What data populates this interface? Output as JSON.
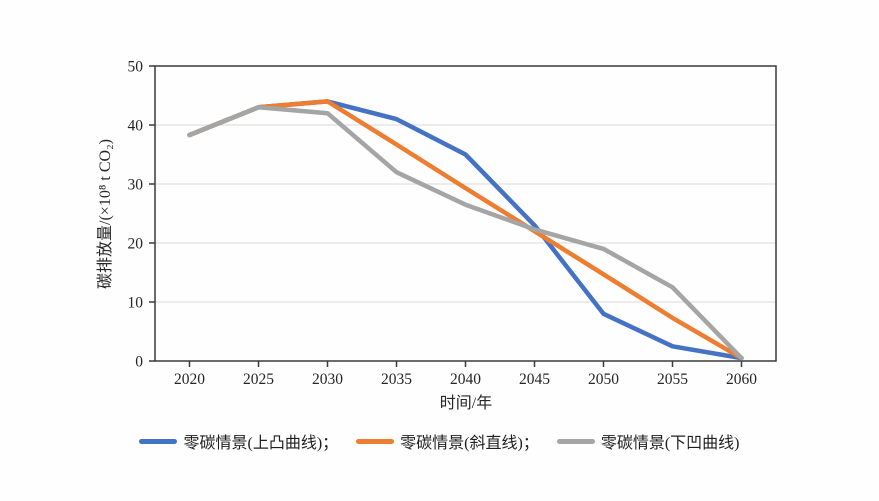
{
  "chart_data": {
    "type": "line",
    "title": "",
    "xlabel": "时间/年",
    "ylabel": "碳排放量/(×10⁸ t CO₂)",
    "x": [
      2020,
      2025,
      2030,
      2035,
      2040,
      2045,
      2050,
      2055,
      2060
    ],
    "xlim": [
      2017.5,
      2062.5
    ],
    "ylim": [
      0,
      50
    ],
    "yticks": [
      0,
      10,
      20,
      30,
      40,
      50
    ],
    "grid": "horizontal-only",
    "legend_position": "bottom-center",
    "series": [
      {
        "name": "零碳情景(上凸曲线)；",
        "color": "#4472C4",
        "values": [
          38.3,
          43,
          44,
          41,
          35,
          23,
          8,
          2.5,
          0.5
        ]
      },
      {
        "name": "零碳情景(斜直线)；",
        "color": "#ED7D31",
        "values": [
          38.3,
          43,
          44,
          36.7,
          29.3,
          22,
          14.7,
          7.3,
          0.5
        ]
      },
      {
        "name": "零碳情景(下凹曲线)",
        "color": "#A5A5A5",
        "values": [
          38.3,
          43,
          42,
          32,
          26.5,
          22.3,
          19,
          12.5,
          0.5
        ]
      }
    ],
    "styles": {
      "grid_color": "#d9d9d9",
      "axis_color": "#3a3a3a",
      "text_color": "#262626",
      "line_width": 4.5
    }
  }
}
